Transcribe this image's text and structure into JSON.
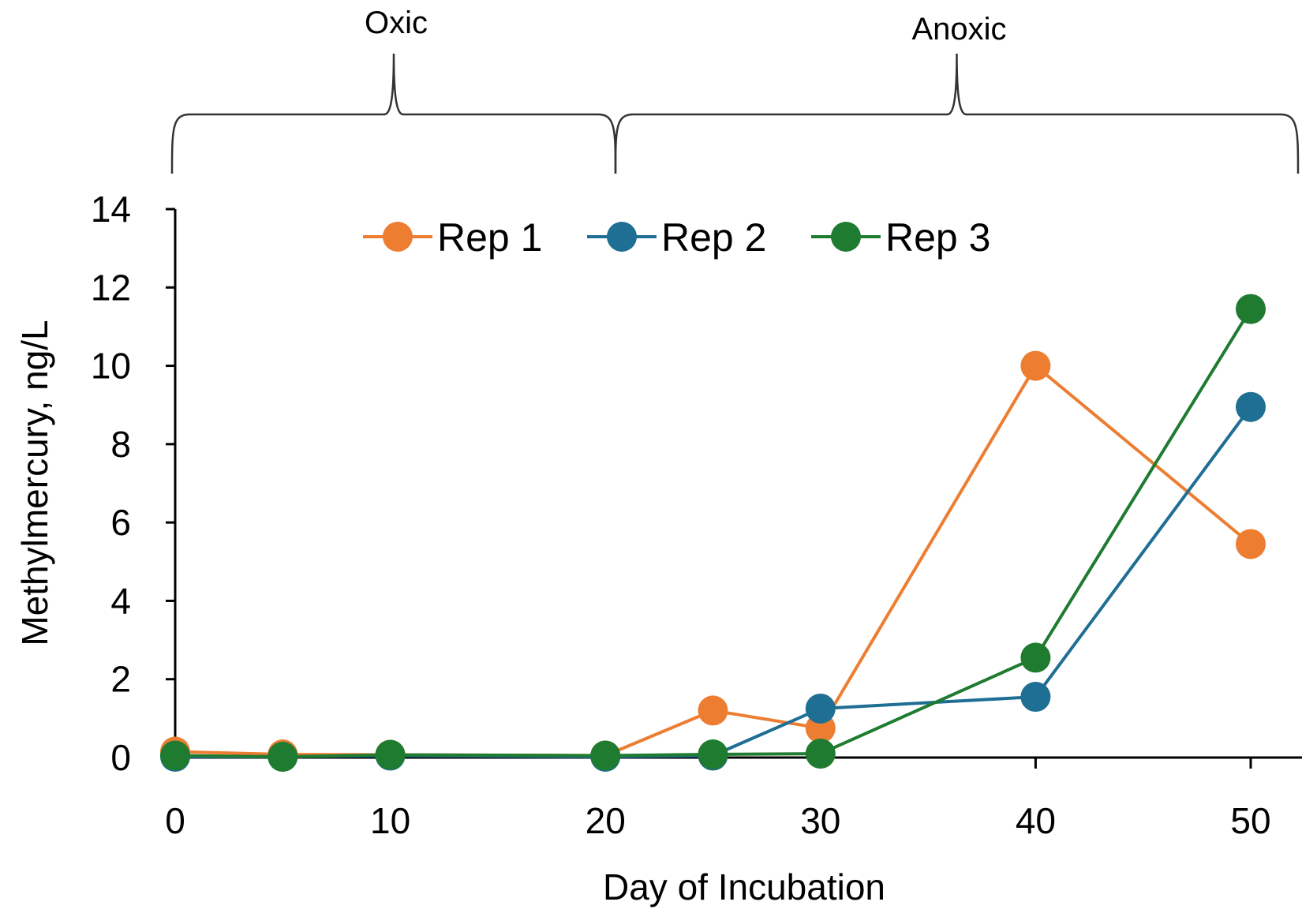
{
  "chart_data": {
    "type": "line",
    "xlabel": "Day of Incubation",
    "ylabel": "Methylmercury, ng/L",
    "xlim": [
      0,
      52
    ],
    "ylim": [
      0,
      14
    ],
    "xticks": [
      0,
      10,
      20,
      30,
      40,
      50
    ],
    "yticks": [
      0,
      2,
      4,
      6,
      8,
      10,
      12,
      14
    ],
    "grid": false,
    "legend": "top",
    "phases": [
      {
        "label": "Oxic",
        "start": 0,
        "end": 20
      },
      {
        "label": "Anoxic",
        "start": 20,
        "end": 52
      }
    ],
    "series": [
      {
        "name": "Rep 1",
        "color": "#ED7D31",
        "x": [
          0,
          5,
          10,
          20,
          25,
          30,
          40,
          50
        ],
        "y": [
          0.15,
          0.08,
          0.07,
          0.05,
          1.2,
          0.75,
          10.0,
          5.45
        ]
      },
      {
        "name": "Rep 2",
        "color": "#1F6E94",
        "x": [
          0,
          5,
          10,
          20,
          25,
          30,
          40,
          50
        ],
        "y": [
          0.02,
          0.02,
          0.05,
          0.02,
          0.05,
          1.25,
          1.55,
          8.95
        ]
      },
      {
        "name": "Rep 3",
        "color": "#1E7B30",
        "x": [
          0,
          5,
          10,
          20,
          25,
          30,
          40,
          50
        ],
        "y": [
          0.05,
          0.02,
          0.07,
          0.05,
          0.08,
          0.1,
          2.55,
          11.45
        ]
      }
    ]
  }
}
